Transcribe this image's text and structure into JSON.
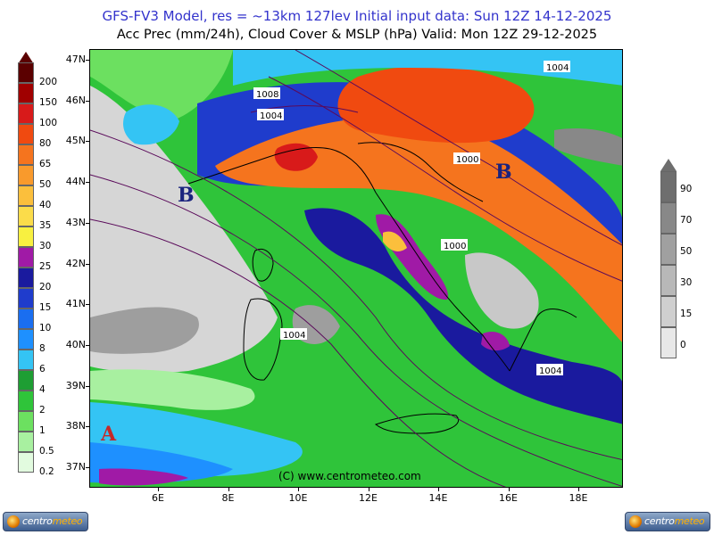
{
  "header": {
    "line1": "GFS-FV3 Model, res = ~13km 127lev    Initial input data: Sun 12Z 14-12-2025",
    "line2": "Acc Prec (mm/24h), Cloud Cover & MSLP (hPa)  Valid: Mon 12Z 29-12-2025"
  },
  "map": {
    "lat_labels": [
      "47N",
      "46N",
      "45N",
      "44N",
      "43N",
      "42N",
      "41N",
      "40N",
      "39N",
      "38N",
      "37N"
    ],
    "lon_labels": [
      "6E",
      "8E",
      "10E",
      "12E",
      "14E",
      "16E",
      "18E"
    ],
    "isobar_labels": [
      "1008",
      "1004",
      "1004",
      "1000",
      "1000",
      "1004",
      "1004"
    ],
    "pressure_centers": [
      {
        "letter": "B",
        "color": "#1a237e"
      },
      {
        "letter": "B",
        "color": "#1a237e"
      },
      {
        "letter": "A",
        "color": "#c62828"
      }
    ],
    "copyright": "(C) www.centrometeo.com"
  },
  "precip_legend": {
    "labels": [
      "200",
      "150",
      "100",
      "80",
      "65",
      "50",
      "40",
      "35",
      "30",
      "25",
      "20",
      "15",
      "10",
      "8",
      "6",
      "4",
      "2",
      "1",
      "0.5",
      "0.2"
    ],
    "colors": [
      "#5b0000",
      "#a00000",
      "#d81a1a",
      "#f04a10",
      "#f5741e",
      "#f99a2c",
      "#fbbf3c",
      "#fbdc4a",
      "#f8f040",
      "#a01aa6",
      "#1a1a9e",
      "#1f3ccc",
      "#1a6ef0",
      "#1e90ff",
      "#34c4f4",
      "#1e9e33",
      "#2fc43a",
      "#6ce060",
      "#a8f0a0",
      "#e2fbdf"
    ]
  },
  "cloud_legend": {
    "labels": [
      "90",
      "70",
      "50",
      "30",
      "15",
      "0"
    ],
    "colors": [
      "#6e6e6e",
      "#888888",
      "#a0a0a0",
      "#b8b8b8",
      "#cfcfcf",
      "#e8e8e8"
    ]
  },
  "logos": [
    {
      "brand_a": "centro",
      "brand_b": "meteo"
    },
    {
      "brand_a": "centro",
      "brand_b": "meteo"
    }
  ]
}
